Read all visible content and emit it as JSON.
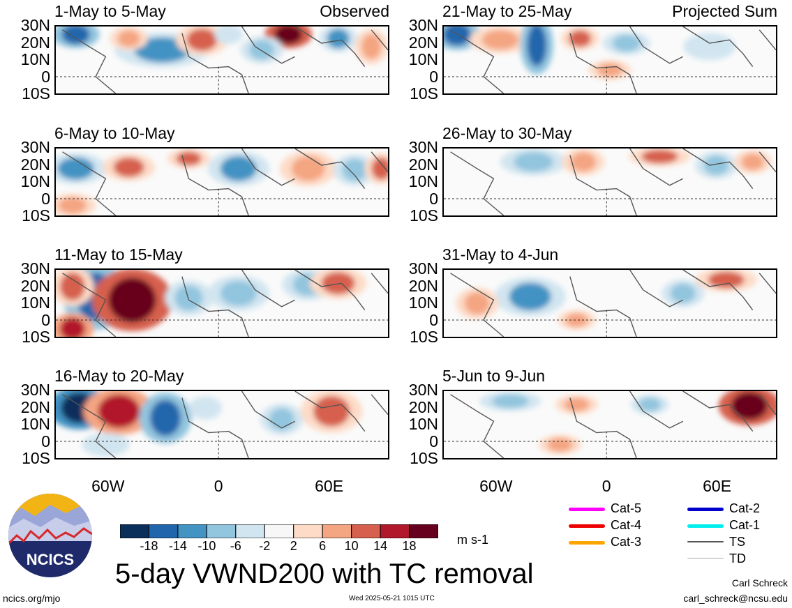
{
  "chart_data": {
    "type": "heatmap",
    "title": "5-day VWND200 with TC removal",
    "units": "m s-1",
    "colorbar": {
      "levels": [
        -18,
        -14,
        -10,
        -6,
        -2,
        2,
        6,
        10,
        14,
        18
      ],
      "level_labels": [
        "-18",
        "-14",
        "-10",
        "-6",
        "-2",
        "2",
        "6",
        "10",
        "14",
        "18"
      ],
      "colors": [
        "#0b2f5b",
        "#2166ac",
        "#4393c3",
        "#92c5de",
        "#d1e5f0",
        "#f7f7f7",
        "#fddbc7",
        "#f4a582",
        "#d6604d",
        "#b2182b",
        "#67001f"
      ]
    },
    "lat_ticks": [
      "30N",
      "20N",
      "10N",
      "0",
      "10S"
    ],
    "lon_ticks": [
      "60W",
      "0",
      "60E"
    ],
    "panels": [
      {
        "title": "1-May to 5-May",
        "tag": "Observed",
        "column": "left",
        "row": 0
      },
      {
        "title": "6-May to 10-May",
        "tag": "",
        "column": "left",
        "row": 1
      },
      {
        "title": "11-May to 15-May",
        "tag": "",
        "column": "left",
        "row": 2
      },
      {
        "title": "16-May to 20-May",
        "tag": "",
        "column": "left",
        "row": 3
      },
      {
        "title": "21-May to 25-May",
        "tag": "Projected Sum",
        "column": "right",
        "row": 0
      },
      {
        "title": "26-May to 30-May",
        "tag": "",
        "column": "right",
        "row": 1
      },
      {
        "title": "31-May to 4-Jun",
        "tag": "",
        "column": "right",
        "row": 2
      },
      {
        "title": "5-Jun to 9-Jun",
        "tag": "",
        "column": "right",
        "row": 3
      }
    ]
  },
  "legend": {
    "items": [
      {
        "label": "Cat-5",
        "color": "#ff00ff"
      },
      {
        "label": "Cat-4",
        "color": "#ee0000"
      },
      {
        "label": "Cat-3",
        "color": "#ffa500"
      },
      {
        "label": "Cat-2",
        "color": "#0000cc"
      },
      {
        "label": "Cat-1",
        "color": "#00eeee"
      },
      {
        "label": "TS",
        "color": "#555555"
      },
      {
        "label": "TD",
        "color": "#aaaaaa"
      }
    ]
  },
  "logo": {
    "text": "NCICS"
  },
  "footer": {
    "url": "ncics.org/mjo",
    "timestamp": "Wed 2025-05-21 1015 UTC",
    "author": "Carl Schreck",
    "email": "carl_schreck@ncsu.edu"
  }
}
